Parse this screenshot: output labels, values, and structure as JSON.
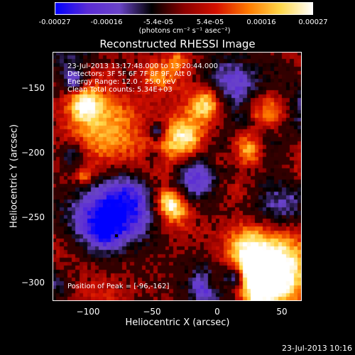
{
  "colorbar": {
    "ticks": [
      "-0.00027",
      "-0.00016",
      "-5.4e-05",
      "5.4e-05",
      "0.00016",
      "0.00027"
    ],
    "unit": "(photons cm⁻² s⁻¹ asec⁻²)",
    "colors": [
      "#0000ff",
      "#5a2bd6",
      "#6a44c8",
      "#000000",
      "#8a0000",
      "#d41000",
      "#ff7a00",
      "#ffd84a",
      "#ffffff"
    ]
  },
  "title": "Reconstructed RHESSI Image",
  "info": {
    "time_range": "23-Jul-2013 13:17:48.000 to 13:20:44.000",
    "detectors": "Detectors: 3F 5F 6F 7F 8F 9F, Att 0",
    "energy": "Energy Range: 12.0 - 25.0 keV",
    "method": "Clean     Total counts: 5.34E+03",
    "peak": "Position of Peak = [-96,-162]"
  },
  "axes": {
    "xlabel": "Heliocentric X (arcsec)",
    "ylabel": "Heliocentric Y (arcsec)",
    "xticks": [
      "−100",
      "−50",
      "0",
      "50"
    ],
    "yticks": [
      "−150",
      "−200",
      "−250",
      "−300"
    ]
  },
  "timestamp": "23-Jul-2013 10:16"
}
